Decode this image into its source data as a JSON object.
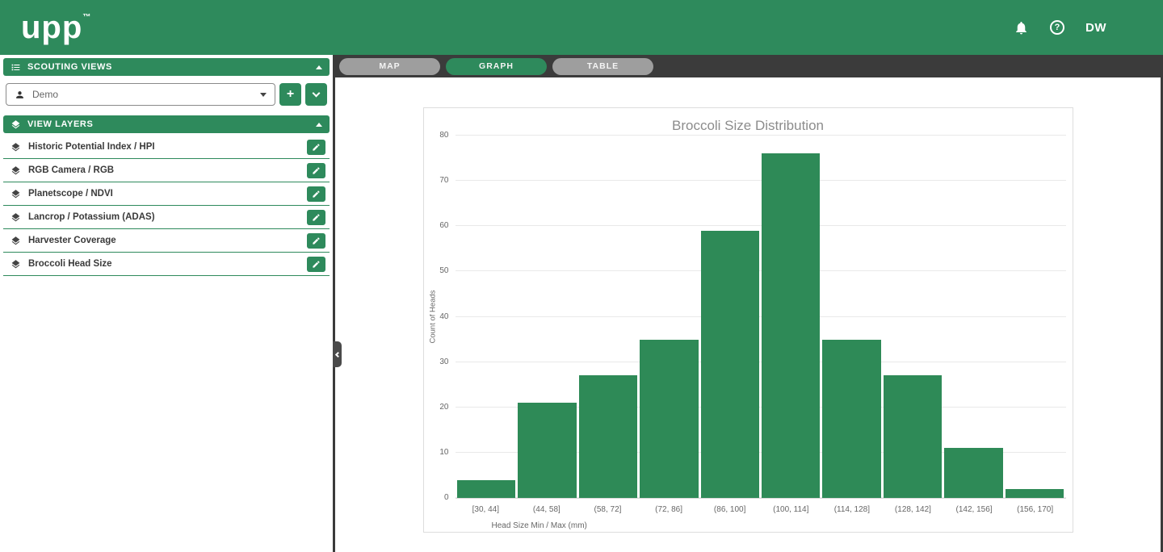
{
  "colors": {
    "brand_green": "#2e8a5c",
    "tab_bar_bg": "#3b3b3b",
    "inactive_tab": "#9e9e9e"
  },
  "header": {
    "logo": "upp",
    "logo_tm": "™",
    "help_label": "?",
    "avatar": "DW"
  },
  "sidebar": {
    "scouting_views_title": "SCOUTING VIEWS",
    "view_select_value": "Demo",
    "add_button_label": "+",
    "view_layers_title": "VIEW LAYERS",
    "layers": [
      {
        "label": "Historic Potential Index / HPI"
      },
      {
        "label": "RGB Camera / RGB"
      },
      {
        "label": "Planetscope / NDVI"
      },
      {
        "label": "Lancrop / Potassium (ADAS)"
      },
      {
        "label": "Harvester Coverage"
      },
      {
        "label": "Broccoli Head Size"
      }
    ]
  },
  "tabs": [
    {
      "label": "MAP",
      "active": false
    },
    {
      "label": "GRAPH",
      "active": true
    },
    {
      "label": "TABLE",
      "active": false
    }
  ],
  "chart_data": {
    "type": "bar",
    "title": "Broccoli Size Distribution",
    "categories": [
      "[30, 44]",
      "(44, 58]",
      "(58, 72]",
      "(72, 86]",
      "(86, 100]",
      "(100, 114]",
      "(114, 128]",
      "(128, 142]",
      "(142, 156]",
      "(156, 170]"
    ],
    "values": [
      4,
      21,
      27,
      35,
      59,
      76,
      35,
      27,
      11,
      2
    ],
    "xlabel": "Head Size Min / Max  (mm)",
    "ylabel": "Count of Heads",
    "ylim": [
      0,
      80
    ],
    "yticks": [
      0,
      10,
      20,
      30,
      40,
      50,
      60,
      70,
      80
    ],
    "grid": true,
    "legend": false,
    "bar_color": "#2e8a57"
  }
}
